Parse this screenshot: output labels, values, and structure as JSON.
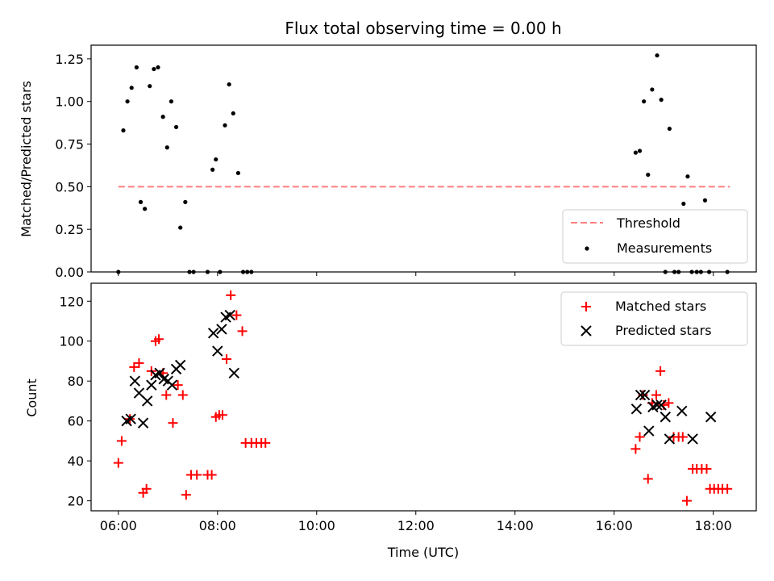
{
  "chart_data": [
    {
      "type": "scatter",
      "title": "Flux total observing time = 0.00 h",
      "xlabel": "",
      "ylabel": "Matched/Predicted stars",
      "xlim": [
        "05:27",
        "18:52"
      ],
      "ylim": [
        0,
        1.33
      ],
      "yticks": [
        0.0,
        0.25,
        0.5,
        0.75,
        1.0,
        1.25
      ],
      "ytick_labels": [
        "0.00",
        "0.25",
        "0.50",
        "0.75",
        "1.00",
        "1.25"
      ],
      "grid": false,
      "legend_position": "lower right",
      "threshold": {
        "name": "Threshold",
        "value": 0.5,
        "x_range": [
          "06:00",
          "18:20"
        ],
        "color": "#ff7f7f",
        "style": "dashed"
      },
      "series": [
        {
          "name": "Measurements",
          "color": "#000000",
          "marker": "dot",
          "x": [
            "06:00",
            "06:06",
            "06:11",
            "06:16",
            "06:22",
            "06:27",
            "06:32",
            "06:38",
            "06:43",
            "06:48",
            "06:54",
            "06:59",
            "07:04",
            "07:10",
            "07:15",
            "07:21",
            "07:26",
            "07:31",
            "07:48",
            "07:54",
            "07:58",
            "08:03",
            "08:09",
            "08:14",
            "08:19",
            "08:25",
            "08:31",
            "08:36",
            "08:41",
            "16:26",
            "16:31",
            "16:36",
            "16:41",
            "16:46",
            "16:52",
            "16:57",
            "17:02",
            "17:07",
            "17:13",
            "17:18",
            "17:24",
            "17:29",
            "17:34",
            "17:40",
            "17:45",
            "17:50",
            "17:55",
            "18:17"
          ],
          "y": [
            0.0,
            0.83,
            1.0,
            1.08,
            1.2,
            0.41,
            0.37,
            1.09,
            1.19,
            1.2,
            0.91,
            0.73,
            1.0,
            0.85,
            0.26,
            0.41,
            0.0,
            0.0,
            0.0,
            0.6,
            0.66,
            0.0,
            0.86,
            1.1,
            0.93,
            0.58,
            0.0,
            0.0,
            0.0,
            0.7,
            0.71,
            1.0,
            0.57,
            1.07,
            1.27,
            1.01,
            0.0,
            0.84,
            0.0,
            0.0,
            0.4,
            0.56,
            0.0,
            0.0,
            0.0,
            0.42,
            0.0,
            0.0
          ]
        }
      ]
    },
    {
      "type": "scatter",
      "title": "",
      "xlabel": "Time (UTC)",
      "ylabel": "Count",
      "xlim": [
        "05:27",
        "18:52"
      ],
      "ylim": [
        15,
        129
      ],
      "xticks": [
        "06:00",
        "08:00",
        "10:00",
        "12:00",
        "14:00",
        "16:00",
        "18:00"
      ],
      "yticks": [
        20,
        40,
        60,
        80,
        100,
        120
      ],
      "grid": false,
      "legend_position": "upper right",
      "series": [
        {
          "name": "Matched stars",
          "color": "#ff0000",
          "marker": "plus",
          "x": [
            "06:00",
            "06:04",
            "06:14",
            "06:19",
            "06:25",
            "06:30",
            "06:34",
            "06:40",
            "06:45",
            "06:49",
            "06:54",
            "06:58",
            "07:06",
            "07:12",
            "07:18",
            "07:22",
            "07:28",
            "07:35",
            "07:48",
            "07:53",
            "07:58",
            "08:02",
            "08:06",
            "08:11",
            "08:16",
            "08:23",
            "08:30",
            "08:34",
            "08:41",
            "08:47",
            "08:53",
            "08:58",
            "16:26",
            "16:31",
            "16:35",
            "16:41",
            "16:46",
            "16:51",
            "16:56",
            "17:00",
            "17:06",
            "17:12",
            "17:18",
            "17:23",
            "17:28",
            "17:35",
            "17:40",
            "17:46",
            "17:52",
            "17:56",
            "18:01",
            "18:06",
            "18:11",
            "18:17"
          ],
          "y": [
            39,
            50,
            61,
            87,
            89,
            24,
            26,
            85,
            100,
            101,
            84,
            73,
            59,
            78,
            73,
            23,
            33,
            33,
            33,
            33,
            62,
            63,
            63,
            91,
            123,
            113,
            105,
            49,
            49,
            49,
            49,
            49,
            46,
            52,
            73,
            31,
            69,
            73,
            85,
            68,
            69,
            52,
            52,
            52,
            20,
            36,
            36,
            36,
            36,
            26,
            26,
            26,
            26,
            26
          ]
        },
        {
          "name": "Predicted stars",
          "color": "#000000",
          "marker": "x",
          "x": [
            "06:10",
            "06:15",
            "06:20",
            "06:25",
            "06:30",
            "06:35",
            "06:40",
            "06:45",
            "06:50",
            "06:55",
            "07:00",
            "07:05",
            "07:10",
            "07:15",
            "07:55",
            "08:00",
            "08:05",
            "08:10",
            "08:15",
            "08:20",
            "16:27",
            "16:32",
            "16:37",
            "16:42",
            "16:47",
            "16:52",
            "16:57",
            "17:02",
            "17:07",
            "17:22",
            "17:35",
            "17:57"
          ],
          "y": [
            60,
            61,
            80,
            74,
            59,
            70,
            78,
            83,
            84,
            81,
            80,
            78,
            86,
            88,
            104,
            95,
            106,
            112,
            113,
            84,
            66,
            73,
            73,
            55,
            67,
            68,
            68,
            62,
            51,
            65,
            51,
            62
          ]
        }
      ]
    }
  ]
}
